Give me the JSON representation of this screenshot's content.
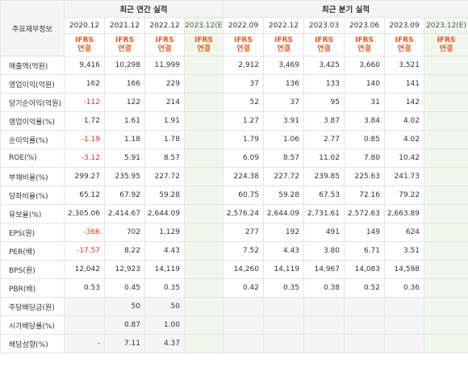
{
  "header": {
    "corner_label": "주요재무정보",
    "annual_group": "최근 연간 실적",
    "quarterly_group": "최근 분기 실적",
    "periods": [
      "2020.12",
      "2021.12",
      "2022.12",
      "2023.12(E)",
      "2022.09",
      "2022.12",
      "2023.03",
      "2023.06",
      "2023.09",
      "2023.12(E)"
    ],
    "ifrs_line1": "IFRS",
    "ifrs_line2": "연결"
  },
  "rows": [
    {
      "label": "매출액(억원)",
      "values": [
        "9,416",
        "10,298",
        "11,999",
        "",
        "2,912",
        "3,469",
        "3,425",
        "3,660",
        "3,521",
        ""
      ]
    },
    {
      "label": "영업이익(억원)",
      "values": [
        "162",
        "166",
        "229",
        "",
        "37",
        "136",
        "133",
        "140",
        "141",
        ""
      ]
    },
    {
      "label": "당기순이익(억원)",
      "values": [
        "-112",
        "122",
        "214",
        "",
        "52",
        "37",
        "95",
        "31",
        "142",
        ""
      ]
    },
    {
      "label": "영업이익률(%)",
      "values": [
        "1.72",
        "1.61",
        "1.91",
        "",
        "1.27",
        "3.91",
        "3.87",
        "3.84",
        "4.02",
        ""
      ]
    },
    {
      "label": "순이익률(%)",
      "values": [
        "-1.19",
        "1.18",
        "1.78",
        "",
        "1.79",
        "1.06",
        "2.77",
        "0.85",
        "4.02",
        ""
      ]
    },
    {
      "label": "ROE(%)",
      "values": [
        "-3.12",
        "5.91",
        "8.57",
        "",
        "6.09",
        "8.57",
        "11.02",
        "7.80",
        "10.42",
        ""
      ]
    },
    {
      "label": "부채비율(%)",
      "values": [
        "299.27",
        "235.95",
        "227.72",
        "",
        "224.38",
        "227.72",
        "239.85",
        "225.63",
        "241.73",
        ""
      ]
    },
    {
      "label": "당좌비율(%)",
      "values": [
        "65.12",
        "67.92",
        "59.28",
        "",
        "60.75",
        "59.28",
        "67.53",
        "72.16",
        "79.22",
        ""
      ]
    },
    {
      "label": "유보율(%)",
      "values": [
        "2,305.06",
        "2,414.67",
        "2,644.09",
        "",
        "2,576.24",
        "2,644.09",
        "2,731.61",
        "2,572.63",
        "2,663.89",
        ""
      ]
    },
    {
      "label": "EPS(원)",
      "values": [
        "-366",
        "702",
        "1,129",
        "",
        "277",
        "192",
        "491",
        "149",
        "624",
        ""
      ]
    },
    {
      "label": "PER(배)",
      "values": [
        "-17.57",
        "8.22",
        "4.43",
        "",
        "7.52",
        "4.43",
        "3.80",
        "6.71",
        "3.51",
        ""
      ]
    },
    {
      "label": "BPS(원)",
      "values": [
        "12,042",
        "12,923",
        "14,119",
        "",
        "14,260",
        "14,119",
        "14,967",
        "14,083",
        "14,598",
        ""
      ]
    },
    {
      "label": "PBR(배)",
      "values": [
        "0.53",
        "0.45",
        "0.35",
        "",
        "0.42",
        "0.35",
        "0.38",
        "0.52",
        "0.36",
        ""
      ]
    },
    {
      "label": "주당배당금(원)",
      "values": [
        "",
        "50",
        "50",
        "",
        "",
        "",
        "",
        "",
        "",
        ""
      ]
    },
    {
      "label": "시가배당률(%)",
      "values": [
        "",
        "0.87",
        "1.00",
        "",
        "",
        "",
        "",
        "",
        "",
        ""
      ]
    },
    {
      "label": "배당성향(%)",
      "values": [
        "-",
        "7.11",
        "4.37",
        "",
        "",
        "",
        "",
        "",
        "",
        ""
      ]
    }
  ],
  "colors": {
    "negative": "#e8321d",
    "ifrs": "#e8571f",
    "estimate_bg": "#f1f7ec",
    "header_bg": "#f5f5f5"
  }
}
